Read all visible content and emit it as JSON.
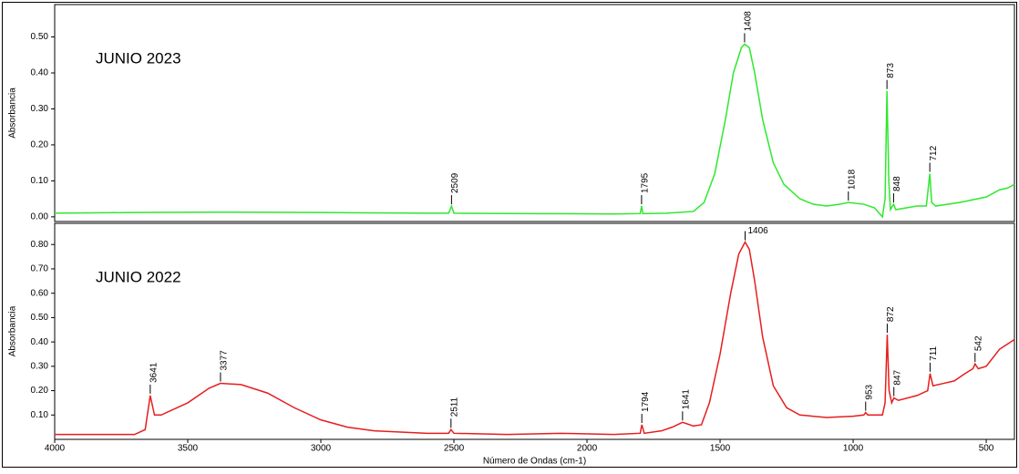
{
  "chart_data": [
    {
      "type": "line",
      "y_label": "Absorbancia",
      "xlim": [
        4000,
        394
      ],
      "ylim": [
        -0.013,
        0.59
      ],
      "yticks": [
        {
          "value": 0,
          "label": "0.00"
        },
        {
          "value": 0.1,
          "label": "0.10"
        },
        {
          "value": 0.2,
          "label": "0.20"
        },
        {
          "value": 0.3,
          "label": "0.30"
        },
        {
          "value": 0.4,
          "label": "0.40"
        },
        {
          "value": 0.5,
          "label": "0.50"
        }
      ],
      "x": [
        4000,
        3700,
        3400,
        3000,
        2600,
        2520,
        2509,
        2500,
        2200,
        1900,
        1800,
        1795,
        1790,
        1700,
        1600,
        1560,
        1520,
        1480,
        1450,
        1420,
        1408,
        1390,
        1370,
        1340,
        1300,
        1260,
        1200,
        1150,
        1100,
        1050,
        1018,
        960,
        920,
        890,
        880,
        873,
        866,
        860,
        848,
        840,
        760,
        725,
        712,
        705,
        690,
        600,
        500,
        450,
        420,
        394
      ],
      "series": [
        {
          "name": "JUNIO 2023",
          "color": "#2ee82e",
          "values": [
            0.01,
            0.012,
            0.013,
            0.012,
            0.01,
            0.01,
            0.03,
            0.01,
            0.009,
            0.008,
            0.009,
            0.03,
            0.009,
            0.01,
            0.015,
            0.04,
            0.12,
            0.27,
            0.4,
            0.47,
            0.48,
            0.47,
            0.4,
            0.27,
            0.15,
            0.09,
            0.05,
            0.035,
            0.03,
            0.035,
            0.04,
            0.035,
            0.025,
            0.0,
            0.05,
            0.35,
            0.1,
            0.02,
            0.035,
            0.02,
            0.03,
            0.03,
            0.12,
            0.04,
            0.03,
            0.04,
            0.055,
            0.075,
            0.08,
            0.09
          ]
        }
      ],
      "peaks": [
        2509,
        1795,
        1408,
        1018,
        873,
        848,
        712
      ]
    },
    {
      "type": "line",
      "y_label": "Absorbancia",
      "x_label": "Número de Ondas (cm-1)",
      "xlim": [
        4000,
        394
      ],
      "ylim": [
        0,
        0.887
      ],
      "xticks": [
        4000,
        3500,
        3000,
        2500,
        2000,
        1500,
        1000,
        500
      ],
      "yticks": [
        {
          "value": 0.1,
          "label": "0.10"
        },
        {
          "value": 0.2,
          "label": "0.20"
        },
        {
          "value": 0.3,
          "label": "0.30"
        },
        {
          "value": 0.4,
          "label": "0.40"
        },
        {
          "value": 0.5,
          "label": "0.50"
        },
        {
          "value": 0.6,
          "label": "0.60"
        },
        {
          "value": 0.7,
          "label": "0.70"
        },
        {
          "value": 0.8,
          "label": "0.80"
        }
      ],
      "x": [
        4000,
        3700,
        3660,
        3641,
        3625,
        3600,
        3500,
        3420,
        3377,
        3300,
        3200,
        3100,
        3000,
        2900,
        2800,
        2600,
        2520,
        2511,
        2500,
        2300,
        2100,
        1900,
        1800,
        1794,
        1785,
        1720,
        1680,
        1641,
        1600,
        1570,
        1540,
        1500,
        1460,
        1430,
        1406,
        1390,
        1370,
        1340,
        1300,
        1250,
        1200,
        1100,
        1000,
        960,
        953,
        945,
        890,
        880,
        872,
        865,
        855,
        847,
        830,
        760,
        720,
        711,
        700,
        660,
        620,
        580,
        550,
        542,
        530,
        500,
        450,
        394
      ],
      "series": [
        {
          "name": "JUNIO 2022",
          "color": "#e61e1e",
          "values": [
            0.02,
            0.02,
            0.04,
            0.18,
            0.1,
            0.1,
            0.15,
            0.21,
            0.23,
            0.225,
            0.19,
            0.13,
            0.08,
            0.05,
            0.035,
            0.025,
            0.025,
            0.04,
            0.025,
            0.02,
            0.025,
            0.02,
            0.025,
            0.06,
            0.025,
            0.035,
            0.05,
            0.07,
            0.055,
            0.06,
            0.15,
            0.35,
            0.6,
            0.76,
            0.81,
            0.78,
            0.65,
            0.42,
            0.22,
            0.13,
            0.1,
            0.09,
            0.095,
            0.1,
            0.11,
            0.1,
            0.1,
            0.15,
            0.43,
            0.2,
            0.15,
            0.17,
            0.16,
            0.18,
            0.2,
            0.27,
            0.22,
            0.23,
            0.24,
            0.27,
            0.29,
            0.31,
            0.29,
            0.3,
            0.37,
            0.41
          ]
        }
      ],
      "peaks": [
        3641,
        3377,
        2511,
        1794,
        1641,
        1406,
        953,
        872,
        847,
        711,
        542
      ]
    }
  ]
}
